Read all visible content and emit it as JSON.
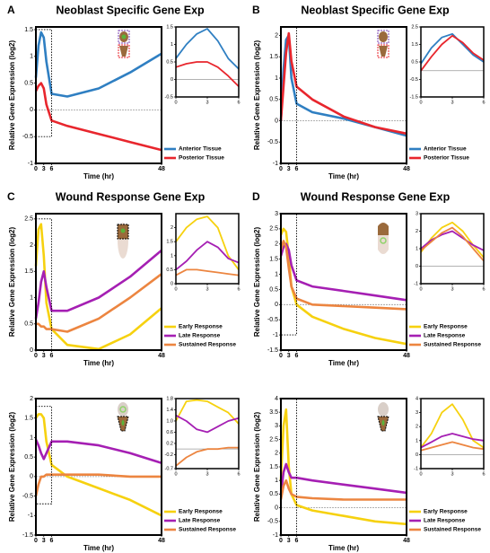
{
  "chart_data": [
    {
      "type": "line",
      "letter": "A",
      "title": "Neoblast Specific Gene Exp",
      "ylabel": "Relative Gene Expression (log2)",
      "xlabel": "Time (hr)",
      "x": [
        0,
        1,
        2,
        3,
        4,
        6,
        12,
        24,
        36,
        48
      ],
      "xlim": [
        0,
        48
      ],
      "xticks": [
        0,
        3,
        6,
        48
      ],
      "ylim": [
        -1,
        1.55
      ],
      "yticks": [
        -1,
        -0.5,
        0,
        0.5,
        1,
        1.5
      ],
      "hline": 0,
      "series": [
        {
          "name": "Anterior Tissue",
          "color": "#2f7fc2",
          "values": [
            0.6,
            1.2,
            1.45,
            1.35,
            0.9,
            0.3,
            0.25,
            0.4,
            0.7,
            1.05
          ]
        },
        {
          "name": "Posterior Tissue",
          "color": "#e8262d",
          "values": [
            0.35,
            0.45,
            0.5,
            0.4,
            0.1,
            -0.2,
            -0.3,
            -0.45,
            -0.6,
            -0.75
          ]
        }
      ],
      "inset": {
        "type": "line",
        "x": [
          0,
          1,
          2,
          3,
          4,
          5,
          6
        ],
        "xlim": [
          0,
          6
        ],
        "xticks": [
          0,
          3,
          6
        ],
        "ylim": [
          -0.5,
          1.5
        ],
        "yticks": [
          -0.5,
          0,
          0.5,
          1,
          1.5
        ],
        "hline": 0,
        "series": [
          {
            "color": "#2f7fc2",
            "values": [
              0.6,
              1.0,
              1.3,
              1.45,
              1.1,
              0.6,
              0.3
            ]
          },
          {
            "color": "#e8262d",
            "values": [
              0.35,
              0.45,
              0.5,
              0.5,
              0.35,
              0.1,
              -0.2
            ]
          }
        ]
      }
    },
    {
      "type": "line",
      "letter": "B",
      "title": "Neoblast Specific Gene Exp",
      "ylabel": "Relative Gene Expression (log2)",
      "xlabel": "Time (hr)",
      "x": [
        0,
        1,
        2,
        3,
        4,
        6,
        12,
        24,
        36,
        48
      ],
      "xlim": [
        0,
        48
      ],
      "xticks": [
        0,
        3,
        6,
        48
      ],
      "ylim": [
        -1,
        2.2
      ],
      "yticks": [
        -1,
        -0.5,
        0,
        0.5,
        1,
        1.5,
        2
      ],
      "hline": 0,
      "series": [
        {
          "name": "Anterior Tissue",
          "color": "#2f7fc2",
          "values": [
            0,
            1.2,
            1.9,
            2.0,
            1.0,
            0.4,
            0.2,
            0.05,
            -0.15,
            -0.35
          ]
        },
        {
          "name": "Posterior Tissue",
          "color": "#e8262d",
          "values": [
            0,
            0.8,
            1.6,
            2.05,
            1.4,
            0.8,
            0.5,
            0.1,
            -0.15,
            -0.3
          ]
        }
      ],
      "inset": {
        "type": "line",
        "x": [
          0,
          1,
          2,
          3,
          4,
          5,
          6
        ],
        "xlim": [
          0,
          6
        ],
        "xticks": [
          0,
          3,
          6
        ],
        "ylim": [
          -1.5,
          2.5
        ],
        "yticks": [
          -1.5,
          -0.5,
          0.5,
          1.5,
          2.5
        ],
        "hline": 0,
        "series": [
          {
            "color": "#2f7fc2",
            "values": [
              0.4,
              1.3,
              1.9,
              2.1,
              1.5,
              0.9,
              0.5
            ]
          },
          {
            "color": "#e8262d",
            "values": [
              0,
              0.8,
              1.5,
              2.0,
              1.6,
              1.0,
              0.6
            ]
          }
        ]
      }
    },
    {
      "type": "line",
      "letter": "C",
      "title": "Wound Response Gene Exp",
      "ylabel": "Relative Gene Expression (log2)",
      "xlabel": "Time (hr)",
      "x": [
        0,
        1,
        2,
        3,
        4,
        6,
        12,
        24,
        36,
        48
      ],
      "xlim": [
        0,
        48
      ],
      "xticks": [
        0,
        3,
        6,
        48
      ],
      "ylim": [
        0,
        2.6
      ],
      "yticks": [
        0,
        0.5,
        1,
        1.5,
        2,
        2.5
      ],
      "series": [
        {
          "name": "Early Response",
          "color": "#f6d10f",
          "values": [
            1.6,
            2.3,
            2.4,
            1.8,
            0.9,
            0.4,
            0.1,
            0.02,
            0.3,
            0.8
          ]
        },
        {
          "name": "Late Response",
          "color": "#a51fb3",
          "values": [
            0.6,
            0.9,
            1.3,
            1.5,
            1.2,
            0.75,
            0.75,
            1.0,
            1.4,
            1.9
          ]
        },
        {
          "name": "Sustained Response",
          "color": "#ec8540",
          "values": [
            0.5,
            0.5,
            0.45,
            0.45,
            0.4,
            0.4,
            0.35,
            0.6,
            1.0,
            1.45
          ]
        }
      ],
      "inset": {
        "type": "line",
        "x": [
          0,
          1,
          2,
          3,
          4,
          5,
          6
        ],
        "xlim": [
          0,
          6
        ],
        "xticks": [
          0,
          3,
          6
        ],
        "ylim": [
          0,
          2.5
        ],
        "yticks": [
          0,
          0.5,
          1,
          1.5,
          2
        ],
        "series": [
          {
            "color": "#f6d10f",
            "values": [
              1.5,
              2.0,
              2.3,
              2.4,
              2.0,
              1.0,
              0.5
            ]
          },
          {
            "color": "#a51fb3",
            "values": [
              0.5,
              0.8,
              1.2,
              1.5,
              1.3,
              0.9,
              0.75
            ]
          },
          {
            "color": "#ec8540",
            "values": [
              0.3,
              0.5,
              0.5,
              0.45,
              0.4,
              0.35,
              0.3
            ]
          }
        ]
      }
    },
    {
      "type": "line",
      "letter": "D",
      "title": "Wound Response Gene Exp",
      "ylabel": "Relative Gene Expression (log2)",
      "xlabel": "Time (hr)",
      "x": [
        0,
        1,
        2,
        3,
        4,
        6,
        12,
        24,
        36,
        48
      ],
      "xlim": [
        0,
        48
      ],
      "xticks": [
        0,
        3,
        6,
        48
      ],
      "ylim": [
        -1.5,
        3
      ],
      "yticks": [
        -1.5,
        -1,
        -0.5,
        0,
        0.5,
        1,
        1.5,
        2,
        2.5,
        3
      ],
      "hline": 0,
      "series": [
        {
          "name": "Early Response",
          "color": "#f6d10f",
          "values": [
            2.3,
            2.5,
            2.4,
            1.6,
            0.6,
            0.0,
            -0.4,
            -0.8,
            -1.1,
            -1.3
          ]
        },
        {
          "name": "Late Response",
          "color": "#a51fb3",
          "values": [
            1.6,
            1.9,
            2.0,
            1.8,
            1.3,
            0.8,
            0.6,
            0.45,
            0.3,
            0.15
          ]
        },
        {
          "name": "Sustained Response",
          "color": "#ec8540",
          "values": [
            1.8,
            2.1,
            1.9,
            1.2,
            0.6,
            0.2,
            0.0,
            -0.05,
            -0.1,
            -0.15
          ]
        }
      ],
      "inset": {
        "type": "line",
        "x": [
          0,
          1,
          2,
          3,
          4,
          5,
          6
        ],
        "xlim": [
          0,
          6
        ],
        "xticks": [
          0,
          3,
          6
        ],
        "ylim": [
          -1,
          3
        ],
        "yticks": [
          -1,
          0,
          1,
          2,
          3
        ],
        "hline": 0,
        "series": [
          {
            "color": "#f6d10f",
            "values": [
              0.8,
              1.6,
              2.2,
              2.5,
              2.0,
              1.2,
              0.5
            ]
          },
          {
            "color": "#a51fb3",
            "values": [
              1.0,
              1.5,
              1.8,
              2.0,
              1.6,
              1.2,
              0.9
            ]
          },
          {
            "color": "#ec8540",
            "values": [
              0.9,
              1.4,
              1.9,
              2.2,
              1.7,
              1.0,
              0.3
            ]
          }
        ]
      }
    },
    {
      "type": "line",
      "ylabel": "Relative Gene Expression (log2)",
      "xlabel": "Time (hr)",
      "x": [
        0,
        1,
        2,
        3,
        4,
        6,
        12,
        24,
        36,
        48
      ],
      "xlim": [
        0,
        48
      ],
      "xticks": [
        0,
        3,
        6,
        48
      ],
      "ylim": [
        -1.5,
        2
      ],
      "yticks": [
        -1.5,
        -1,
        -0.5,
        0,
        0.5,
        1,
        1.5,
        2
      ],
      "hline": 0,
      "series": [
        {
          "name": "Early Response",
          "color": "#f6d10f",
          "values": [
            1.5,
            1.6,
            1.6,
            1.5,
            0.9,
            0.3,
            0.0,
            -0.3,
            -0.6,
            -1.0
          ]
        },
        {
          "name": "Late Response",
          "color": "#a51fb3",
          "values": [
            0.95,
            0.8,
            0.6,
            0.45,
            0.6,
            0.9,
            0.9,
            0.8,
            0.6,
            0.35
          ]
        },
        {
          "name": "Sustained Response",
          "color": "#ec8540",
          "values": [
            -0.5,
            -0.2,
            0.0,
            0.0,
            0.05,
            0.05,
            0.05,
            0.05,
            0.0,
            0.0
          ]
        }
      ],
      "inset": {
        "type": "line",
        "x": [
          0,
          1,
          2,
          3,
          4,
          5,
          6
        ],
        "xlim": [
          0,
          6
        ],
        "xticks": [
          0,
          3,
          6
        ],
        "ylim": [
          -0.7,
          1.8
        ],
        "yticks": [
          -0.7,
          -0.2,
          0.2,
          0.6,
          {
            "value": 1,
            "label": "1.0"
          },
          1.4,
          1.8
        ],
        "hline": 0,
        "series": [
          {
            "color": "#f6d10f",
            "values": [
              1.0,
              1.7,
              1.75,
              1.7,
              1.5,
              1.3,
              0.9
            ]
          },
          {
            "color": "#a51fb3",
            "values": [
              1.2,
              1.0,
              0.7,
              0.6,
              0.8,
              1.0,
              1.1
            ]
          },
          {
            "color": "#ec8540",
            "values": [
              -0.6,
              -0.3,
              -0.1,
              0.0,
              0.0,
              0.05,
              0.05
            ]
          }
        ]
      }
    },
    {
      "type": "line",
      "ylabel": "Relative Gene Expression (log2)",
      "xlabel": "Time (hr)",
      "x": [
        0,
        1,
        2,
        3,
        4,
        6,
        12,
        24,
        36,
        48
      ],
      "xlim": [
        0,
        48
      ],
      "xticks": [
        0,
        3,
        6,
        48
      ],
      "ylim": [
        -1,
        4
      ],
      "yticks": [
        -1,
        -0.5,
        0,
        0.5,
        1,
        1.5,
        2,
        2.5,
        3,
        3.5,
        4
      ],
      "hline": 0,
      "series": [
        {
          "name": "Early Response",
          "color": "#f6d10f",
          "values": [
            1,
            3,
            3.6,
            1.5,
            0.5,
            0.1,
            -0.1,
            -0.3,
            -0.5,
            -0.6
          ]
        },
        {
          "name": "Late Response",
          "color": "#a51fb3",
          "values": [
            0.5,
            1.3,
            1.6,
            1.3,
            1.1,
            1.1,
            1.0,
            0.85,
            0.7,
            0.55
          ]
        },
        {
          "name": "Sustained Response",
          "color": "#ec8540",
          "values": [
            0.3,
            0.8,
            1.0,
            0.7,
            0.5,
            0.4,
            0.35,
            0.3,
            0.3,
            0.3
          ]
        }
      ],
      "inset": {
        "type": "line",
        "x": [
          0,
          1,
          2,
          3,
          4,
          5,
          6
        ],
        "xlim": [
          0,
          6
        ],
        "xticks": [
          0,
          3,
          6
        ],
        "ylim": [
          -1,
          4
        ],
        "yticks": [
          -1,
          0,
          1,
          2,
          3,
          4
        ],
        "hline": 0,
        "series": [
          {
            "color": "#f6d10f",
            "values": [
              0.5,
              1.5,
              3.0,
              3.6,
              2.5,
              1.0,
              0.5
            ]
          },
          {
            "color": "#a51fb3",
            "values": [
              0.5,
              0.9,
              1.3,
              1.5,
              1.3,
              1.1,
              1.0
            ]
          },
          {
            "color": "#ec8540",
            "values": [
              0.3,
              0.5,
              0.7,
              0.9,
              0.7,
              0.5,
              0.4
            ]
          }
        ]
      }
    }
  ]
}
